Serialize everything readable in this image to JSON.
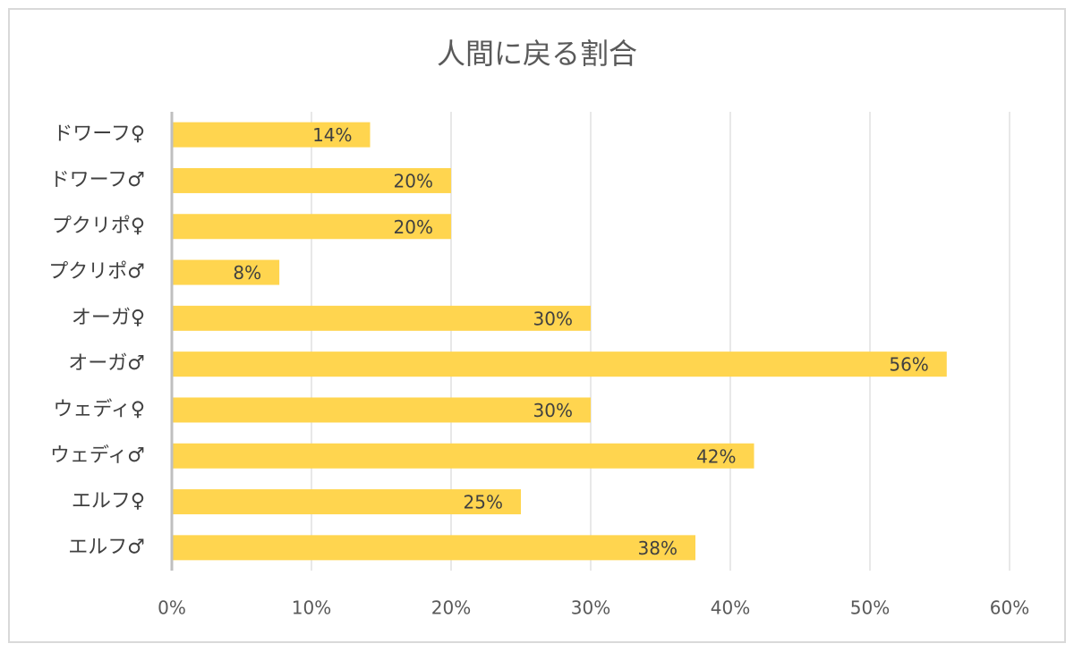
{
  "chart_data": {
    "type": "barh",
    "title": "人間に戻る割合",
    "categories": [
      "ドワーフ♀",
      "ドワーフ♂",
      "プクリポ♀",
      "プクリポ♂",
      "オーガ♀",
      "オーガ♂",
      "ウェディ♀",
      "ウェディ♂",
      "エルフ♀",
      "エルフ♂"
    ],
    "values": [
      14.2,
      20,
      20,
      7.7,
      30,
      55.5,
      30,
      41.7,
      25,
      37.5
    ],
    "value_labels": [
      "14%",
      "20%",
      "20%",
      "8%",
      "30%",
      "56%",
      "30%",
      "42%",
      "25%",
      "38%"
    ],
    "color": "#ffd54f",
    "xlim": [
      0,
      60
    ],
    "xticks": [
      {
        "value": 0,
        "label": "0%"
      },
      {
        "value": 10,
        "label": "10%"
      },
      {
        "value": 20,
        "label": "20%"
      },
      {
        "value": 30,
        "label": "30%"
      },
      {
        "value": 40,
        "label": "40%"
      },
      {
        "value": 50,
        "label": "50%"
      },
      {
        "value": 60,
        "label": "60%"
      }
    ],
    "grid": true
  }
}
